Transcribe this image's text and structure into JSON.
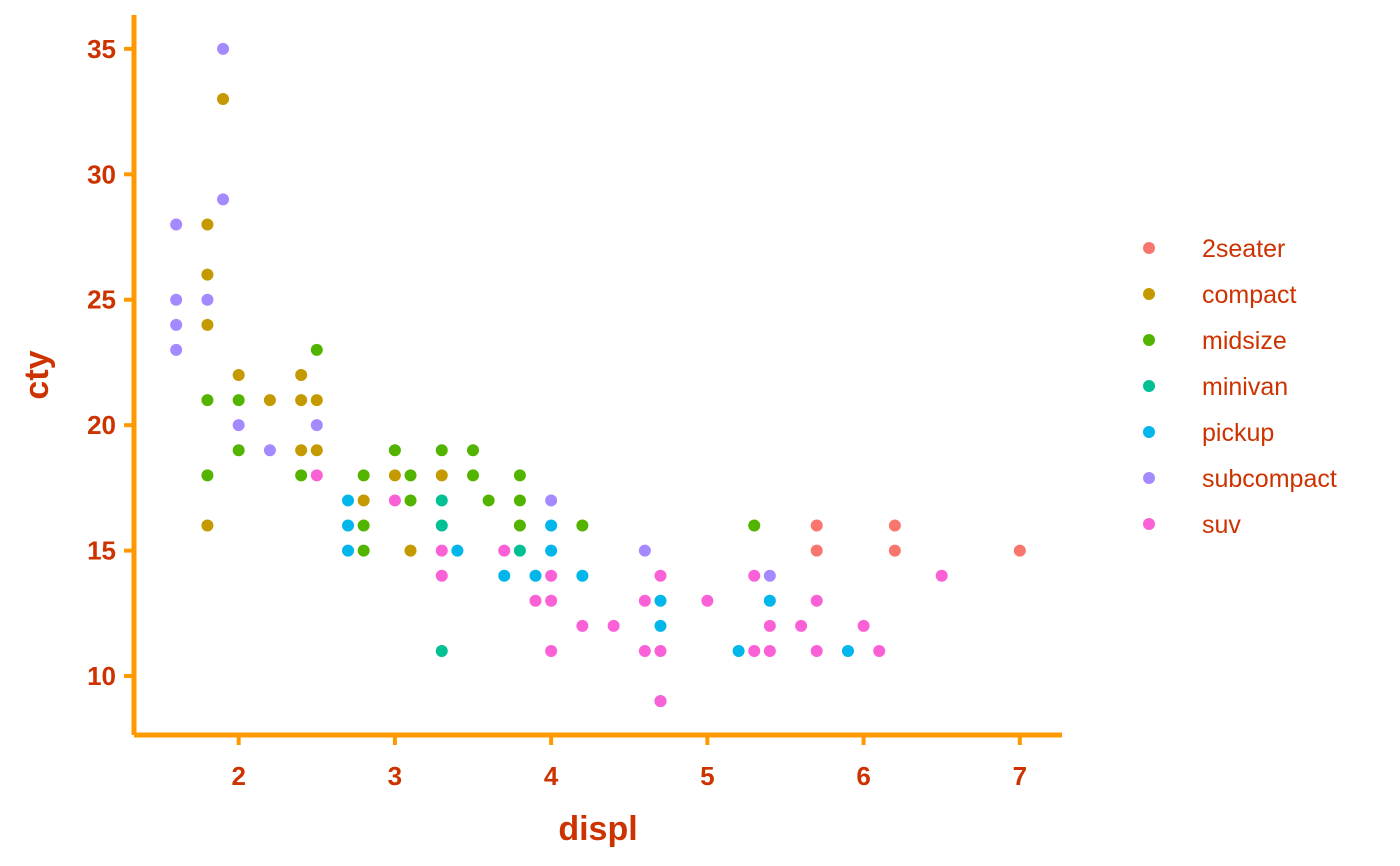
{
  "chart_data": {
    "type": "scatter",
    "title": "",
    "xlabel": "displ",
    "ylabel": "cty",
    "xlim": [
      1.33,
      7.27
    ],
    "ylim": [
      7.65,
      36.35
    ],
    "xticks": [
      2,
      3,
      4,
      5,
      6,
      7
    ],
    "yticks": [
      10,
      15,
      20,
      25,
      30,
      35
    ],
    "grid": false,
    "legend_position": "right",
    "colors": {
      "axis": "#FF9900",
      "text": "#CC3300"
    },
    "series": [
      {
        "name": "2seater",
        "color": "#F8766D",
        "points": [
          [
            5.7,
            16
          ],
          [
            5.7,
            15
          ],
          [
            6.2,
            16
          ],
          [
            6.2,
            15
          ],
          [
            7.0,
            15
          ]
        ]
      },
      {
        "name": "compact",
        "color": "#C49A00",
        "points": [
          [
            1.8,
            28
          ],
          [
            1.8,
            26
          ],
          [
            1.8,
            24
          ],
          [
            1.8,
            16
          ],
          [
            1.9,
            33
          ],
          [
            2.0,
            22
          ],
          [
            2.2,
            21
          ],
          [
            2.4,
            22
          ],
          [
            2.4,
            21
          ],
          [
            2.4,
            19
          ],
          [
            2.5,
            21
          ],
          [
            2.5,
            19
          ],
          [
            2.8,
            17
          ],
          [
            3.0,
            18
          ],
          [
            3.1,
            15
          ],
          [
            3.3,
            18
          ]
        ]
      },
      {
        "name": "midsize",
        "color": "#53B400",
        "points": [
          [
            1.8,
            21
          ],
          [
            1.8,
            18
          ],
          [
            2.0,
            21
          ],
          [
            2.0,
            19
          ],
          [
            2.4,
            18
          ],
          [
            2.5,
            23
          ],
          [
            2.8,
            18
          ],
          [
            2.8,
            16
          ],
          [
            2.8,
            15
          ],
          [
            3.0,
            19
          ],
          [
            3.1,
            18
          ],
          [
            3.1,
            17
          ],
          [
            3.3,
            19
          ],
          [
            3.5,
            19
          ],
          [
            3.5,
            18
          ],
          [
            3.6,
            17
          ],
          [
            3.8,
            18
          ],
          [
            3.8,
            17
          ],
          [
            3.8,
            16
          ],
          [
            4.2,
            16
          ],
          [
            5.3,
            16
          ]
        ]
      },
      {
        "name": "minivan",
        "color": "#00C094",
        "points": [
          [
            3.3,
            17
          ],
          [
            3.3,
            16
          ],
          [
            3.3,
            11
          ],
          [
            3.8,
            15
          ]
        ]
      },
      {
        "name": "pickup",
        "color": "#00B6EB",
        "points": [
          [
            2.7,
            17
          ],
          [
            2.7,
            16
          ],
          [
            2.7,
            15
          ],
          [
            3.4,
            15
          ],
          [
            3.7,
            14
          ],
          [
            3.9,
            14
          ],
          [
            4.0,
            16
          ],
          [
            4.0,
            15
          ],
          [
            4.2,
            14
          ],
          [
            4.7,
            13
          ],
          [
            4.7,
            12
          ],
          [
            4.7,
            9
          ],
          [
            5.2,
            11
          ],
          [
            5.4,
            13
          ],
          [
            5.9,
            11
          ]
        ]
      },
      {
        "name": "subcompact",
        "color": "#A58AFF",
        "points": [
          [
            1.6,
            28
          ],
          [
            1.6,
            25
          ],
          [
            1.6,
            24
          ],
          [
            1.6,
            23
          ],
          [
            1.8,
            25
          ],
          [
            1.9,
            35
          ],
          [
            1.9,
            29
          ],
          [
            2.0,
            20
          ],
          [
            2.2,
            19
          ],
          [
            2.5,
            20
          ],
          [
            4.0,
            17
          ],
          [
            4.6,
            15
          ],
          [
            5.4,
            14
          ]
        ]
      },
      {
        "name": "suv",
        "color": "#FB61D7",
        "points": [
          [
            2.5,
            18
          ],
          [
            3.0,
            17
          ],
          [
            3.3,
            15
          ],
          [
            3.3,
            14
          ],
          [
            3.7,
            15
          ],
          [
            3.9,
            13
          ],
          [
            4.0,
            14
          ],
          [
            4.0,
            13
          ],
          [
            4.0,
            11
          ],
          [
            4.2,
            12
          ],
          [
            4.4,
            12
          ],
          [
            4.6,
            13
          ],
          [
            4.6,
            11
          ],
          [
            4.7,
            14
          ],
          [
            4.7,
            11
          ],
          [
            4.7,
            9
          ],
          [
            5.0,
            13
          ],
          [
            5.3,
            14
          ],
          [
            5.3,
            11
          ],
          [
            5.4,
            12
          ],
          [
            5.4,
            11
          ],
          [
            5.6,
            12
          ],
          [
            5.7,
            13
          ],
          [
            5.7,
            11
          ],
          [
            6.0,
            12
          ],
          [
            6.1,
            11
          ],
          [
            6.5,
            14
          ]
        ]
      }
    ]
  }
}
